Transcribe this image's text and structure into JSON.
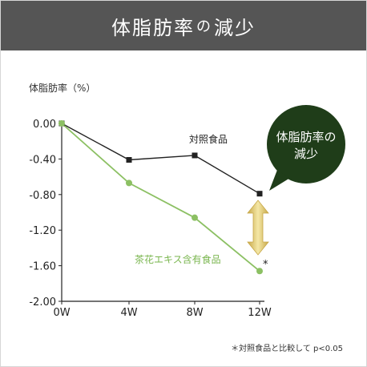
{
  "header": {
    "title_main": "体脂肪率",
    "title_particle": "の",
    "title_end": "減少"
  },
  "badge": {
    "line1": "体脂肪率の",
    "line2": "減少"
  },
  "footnote": "＊対照食品と比較して p<0.05",
  "significance_mark": "*",
  "colors": {
    "header_bg": "#555555",
    "control": "#222222",
    "tea": "#8cc063",
    "badge": "#1f3d19",
    "arrow": "#e0c870"
  },
  "chart_data": {
    "type": "line",
    "ylabel": "体脂肪率（%）",
    "categories": [
      "0W",
      "4W",
      "8W",
      "12W"
    ],
    "y_ticks": [
      "0.00",
      "-0.40",
      "-0.80",
      "-1.20",
      "-1.60",
      "-2.00"
    ],
    "ylim": [
      -2.0,
      0.0
    ],
    "grid": false,
    "series": [
      {
        "name": "対照食品",
        "values": [
          0.0,
          -0.41,
          -0.36,
          -0.79
        ]
      },
      {
        "name": "茶花エキス含有食品",
        "values": [
          0.0,
          -0.67,
          -1.06,
          -1.66
        ]
      }
    ]
  }
}
